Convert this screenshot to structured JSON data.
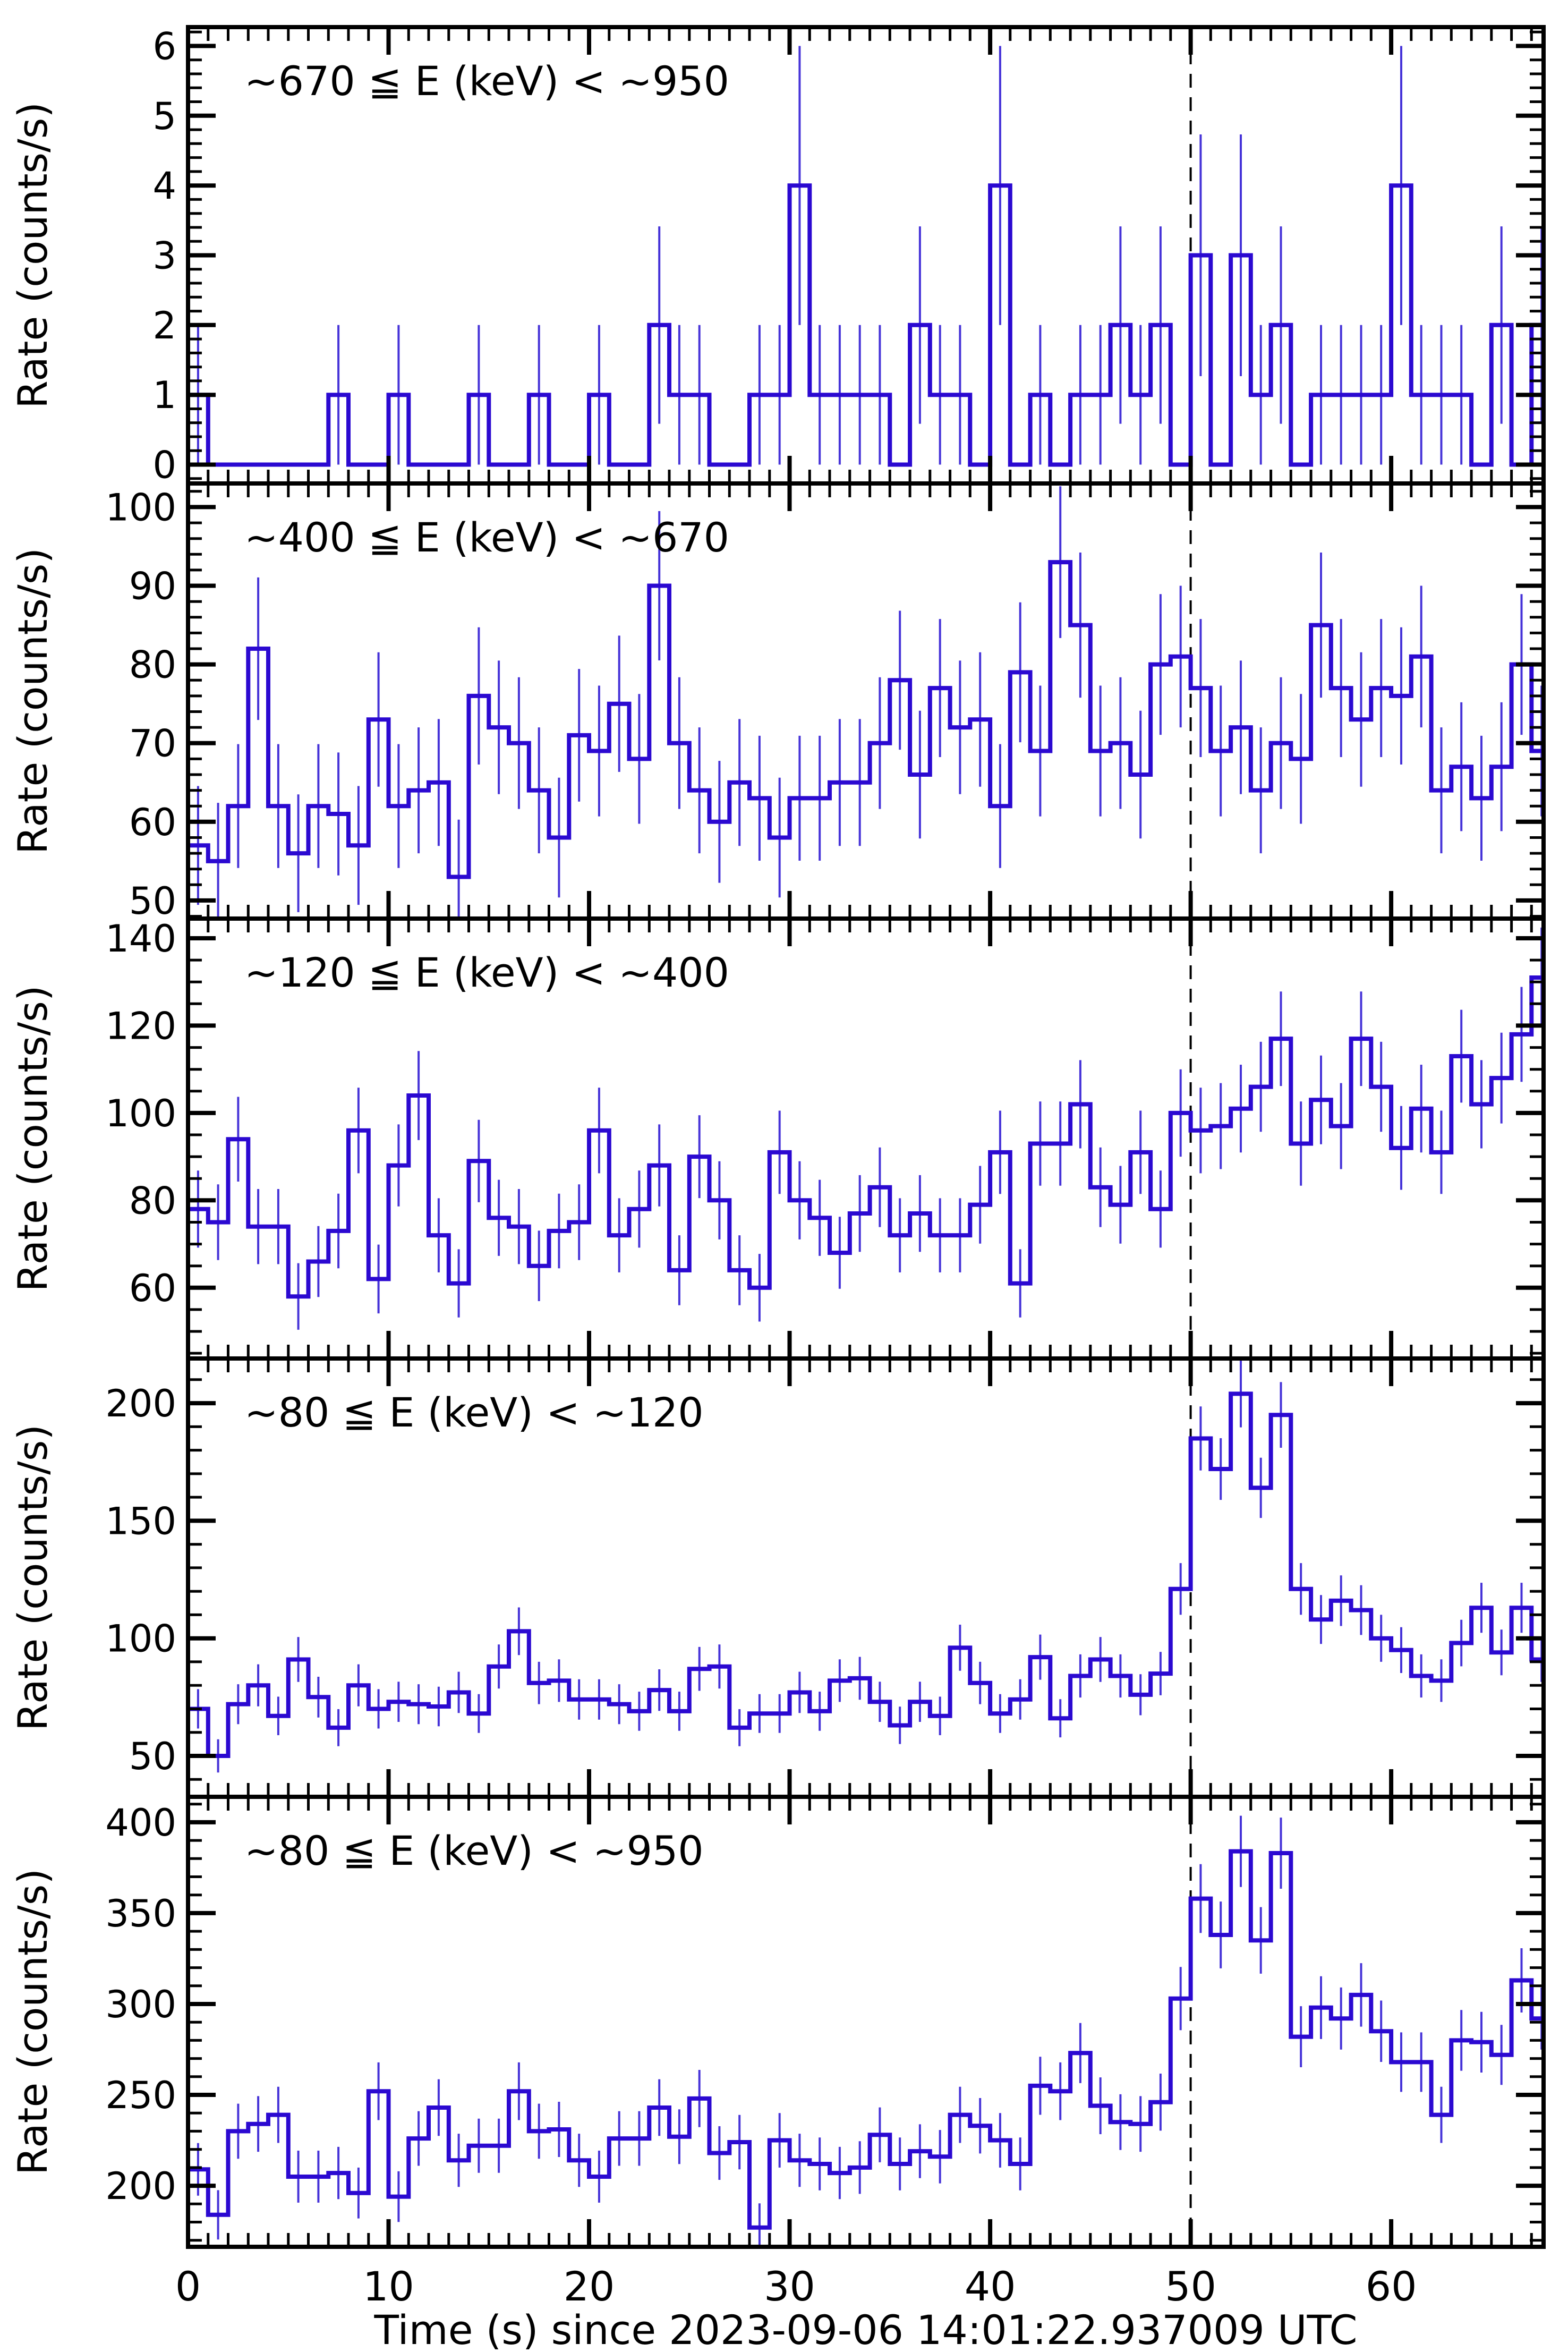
{
  "figure": {
    "xlabel": "Time (s) since 2023-09-06 14:01:22.937009 UTC",
    "ylabel": "Rate (counts/s)",
    "xlim": [
      0,
      67.6
    ],
    "x_major_ticks": [
      0,
      10,
      20,
      30,
      40,
      50,
      60
    ],
    "x_minor_step_s": 1,
    "bin_width_s": 1,
    "dashed_marker_time_s": 50,
    "line_color": "#2b09d1",
    "error_bar_color": "#4633d8",
    "axis_color": "#000000",
    "error_model": "sqrt(rate), no caps, skipped when rate = 0"
  },
  "chart_data": [
    {
      "type": "line",
      "style": "step-histogram-with-errorbars",
      "title": "~670 ≦ E (keV) < ~950",
      "ylabel": "Rate (counts/s)",
      "ylim": [
        -0.27,
        6.27
      ],
      "yticks": [
        0,
        1,
        2,
        3,
        4,
        5,
        6
      ],
      "y_minor_step": 0.2,
      "x_start": 0,
      "values": [
        1,
        0,
        0,
        0,
        0,
        0,
        0,
        1,
        0,
        0,
        1,
        0,
        0,
        0,
        1,
        0,
        0,
        1,
        0,
        0,
        1,
        0,
        0,
        2,
        1,
        1,
        0,
        0,
        1,
        1,
        4,
        1,
        1,
        1,
        1,
        0,
        2,
        1,
        1,
        0,
        4,
        0,
        1,
        0,
        1,
        1,
        2,
        1,
        2,
        0,
        3,
        0,
        3,
        1,
        2,
        0,
        1,
        1,
        1,
        1,
        4,
        1,
        1,
        1,
        0,
        2,
        0,
        2
      ]
    },
    {
      "type": "line",
      "style": "step-histogram-with-errorbars",
      "title": "~400 ≦ E (keV) < ~670",
      "ylabel": "Rate (counts/s)",
      "ylim": [
        47.7,
        103.0
      ],
      "yticks": [
        50,
        60,
        70,
        80,
        90,
        100
      ],
      "y_minor_step": 2,
      "x_start": 0,
      "values": [
        57,
        55,
        62,
        82,
        62,
        56,
        62,
        61,
        57,
        73,
        62,
        64,
        65,
        53,
        76,
        72,
        70,
        64,
        58,
        71,
        69,
        75,
        68,
        90,
        70,
        64,
        60,
        65,
        63,
        58,
        63,
        63,
        65,
        65,
        70,
        78,
        66,
        77,
        72,
        73,
        62,
        79,
        69,
        93,
        85,
        69,
        70,
        66,
        80,
        81,
        77,
        69,
        72,
        64,
        70,
        68,
        85,
        77,
        73,
        77,
        76,
        81,
        64,
        67,
        63,
        67,
        80,
        69
      ]
    },
    {
      "type": "line",
      "style": "step-histogram-with-errorbars",
      "title": "~120 ≦ E (keV) < ~400",
      "ylabel": "Rate (counts/s)",
      "ylim": [
        43.8,
        144.5
      ],
      "yticks": [
        60,
        80,
        100,
        120,
        140
      ],
      "y_minor_step": 5,
      "x_start": 0,
      "values": [
        78,
        75,
        94,
        74,
        74,
        58,
        66,
        73,
        96,
        62,
        88,
        104,
        72,
        61,
        89,
        76,
        74,
        65,
        73,
        75,
        96,
        72,
        78,
        88,
        64,
        90,
        80,
        64,
        60,
        91,
        80,
        76,
        68,
        77,
        83,
        72,
        77,
        72,
        72,
        79,
        91,
        61,
        93,
        93,
        102,
        83,
        79,
        91,
        78,
        100,
        96,
        97,
        101,
        106,
        117,
        93,
        103,
        97,
        117,
        106,
        92,
        101,
        91,
        113,
        102,
        108,
        118,
        131
      ]
    },
    {
      "type": "line",
      "style": "step-histogram-with-errorbars",
      "title": "~80 ≦ E (keV) < ~120",
      "ylabel": "Rate (counts/s)",
      "ylim": [
        32.6,
        219.0
      ],
      "yticks": [
        50,
        100,
        150,
        200
      ],
      "y_minor_step": 10,
      "x_start": 0,
      "values": [
        70,
        50,
        72,
        80,
        67,
        91,
        75,
        62,
        80,
        70,
        73,
        72,
        71,
        77,
        68,
        88,
        103,
        81,
        82,
        74,
        74,
        72,
        69,
        78,
        69,
        87,
        88,
        62,
        68,
        68,
        77,
        69,
        82,
        83,
        73,
        63,
        73,
        67,
        96,
        81,
        68,
        74,
        92,
        66,
        84,
        91,
        84,
        76,
        85,
        121,
        185,
        172,
        204,
        164,
        195,
        121,
        108,
        116,
        112,
        100,
        95,
        84,
        82,
        98,
        113,
        94,
        113,
        91
      ]
    },
    {
      "type": "line",
      "style": "step-histogram-with-errorbars",
      "title": "~80 ≦ E (keV) < ~950",
      "ylabel": "Rate (counts/s)",
      "ylim": [
        166.4,
        414.0
      ],
      "yticks": [
        200,
        250,
        300,
        350,
        400
      ],
      "y_minor_step": 10,
      "x_start": 0,
      "values": [
        209,
        184,
        230,
        234,
        239,
        205,
        205,
        207,
        196,
        252,
        194,
        226,
        243,
        214,
        222,
        222,
        252,
        230,
        231,
        214,
        205,
        226,
        226,
        243,
        227,
        248,
        218,
        224,
        177,
        225,
        214,
        212,
        207,
        210,
        228,
        212,
        219,
        216,
        239,
        233,
        225,
        212,
        255,
        252,
        273,
        244,
        235,
        234,
        246,
        303,
        358,
        338,
        384,
        335,
        383,
        282,
        298,
        292,
        305,
        285,
        268,
        268,
        239,
        280,
        279,
        272,
        313,
        292
      ]
    }
  ]
}
